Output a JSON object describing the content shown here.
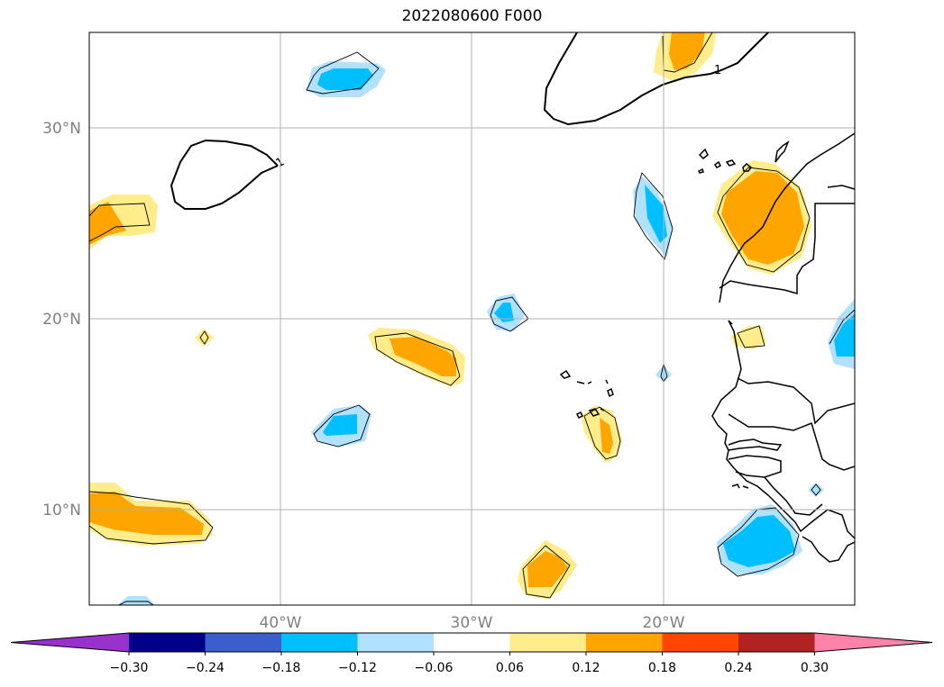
{
  "title": "2022080600 F000",
  "map": {
    "lon_range": [
      -50,
      -10
    ],
    "lat_range": [
      5,
      35
    ],
    "lat_ticks": [
      "30°N",
      "20°N",
      "10°N"
    ],
    "lon_ticks": [
      "40°W",
      "30°W",
      "20°W"
    ],
    "grid": true,
    "contour_label": "1"
  },
  "colorbar": {
    "tick_labels": [
      "−0.30",
      "−0.24",
      "−0.18",
      "−0.12",
      "−0.06",
      "0.06",
      "0.12",
      "0.18",
      "0.24",
      "0.30"
    ],
    "colors": [
      "#9932cc",
      "#00008b",
      "#3a5fcd",
      "#00bfff",
      "#b0e2ff",
      "#ffffff",
      "#ffec8b",
      "#ffa500",
      "#ff4500",
      "#b22222",
      "#ff82ab"
    ],
    "extend": "both"
  },
  "colors": {
    "light_blue": "#b0e2ff",
    "blue": "#00bfff",
    "light_yellow": "#ffec8b",
    "orange": "#ffa500",
    "grid": "#b0b0b0"
  }
}
